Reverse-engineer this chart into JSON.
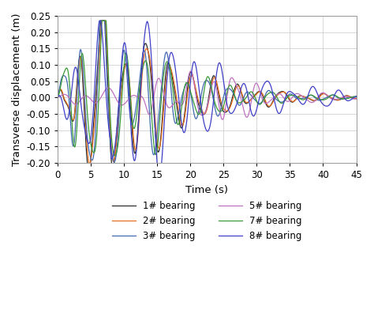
{
  "title": "",
  "xlabel": "Time (s)",
  "ylabel": "Transverse displacement (m)",
  "xlim": [
    0,
    45
  ],
  "ylim": [
    -0.2,
    0.25
  ],
  "yticks": [
    -0.2,
    -0.15,
    -0.1,
    -0.05,
    0.0,
    0.05,
    0.1,
    0.15,
    0.2,
    0.25
  ],
  "xticks": [
    0,
    5,
    10,
    15,
    20,
    25,
    30,
    35,
    40,
    45
  ],
  "series_colors": {
    "1# bearing": "#2d2d2d",
    "2# bearing": "#e87020",
    "3# bearing": "#4169b0",
    "5# bearing": "#c070c0",
    "7# bearing": "#3a9a3a",
    "8# bearing": "#4040c8"
  },
  "legend_ncol": 2,
  "figsize": [
    4.74,
    4.25
  ],
  "dpi": 100,
  "background_color": "#ffffff",
  "grid_color": "#c8c8c8",
  "linewidth": 0.9
}
